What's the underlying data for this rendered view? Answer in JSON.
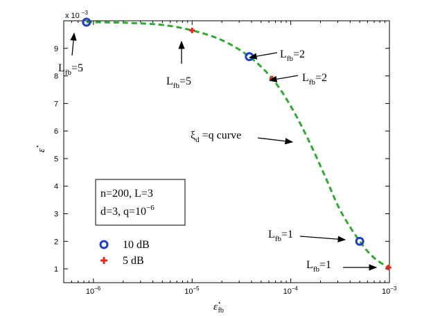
{
  "chart_data": {
    "type": "scatter",
    "xscale": "log",
    "xlim": [
      5e-07,
      0.001
    ],
    "ylim": [
      0.0005,
      0.01
    ],
    "xlabel_main": "ε",
    "xlabel_sup": "⋆",
    "xlabel_sub": "fb",
    "ylabel_main": "ε",
    "ylabel_sup": "⋆",
    "y_multiplier_base": "x 10",
    "y_multiplier_exp": "−3",
    "x_ticks": [
      1e-06,
      1e-05,
      0.0001,
      0.001
    ],
    "x_tick_labels": [
      {
        "base": "10",
        "exp": "−6"
      },
      {
        "base": "10",
        "exp": "−5"
      },
      {
        "base": "10",
        "exp": "−4"
      },
      {
        "base": "10",
        "exp": "−3"
      }
    ],
    "y_ticks": [
      0.001,
      0.002,
      0.003,
      0.004,
      0.005,
      0.006,
      0.007,
      0.008,
      0.009
    ],
    "y_tick_labels": [
      "1",
      "2",
      "3",
      "4",
      "5",
      "6",
      "7",
      "8",
      "9"
    ],
    "curve": {
      "color": "#2eaa2e",
      "style": "dashed",
      "points": [
        [
          8.5e-07,
          0.00995
        ],
        [
          2e-06,
          0.00993
        ],
        [
          5e-06,
          0.00985
        ],
        [
          1e-05,
          0.00965
        ],
        [
          2e-05,
          0.0093
        ],
        [
          3.8e-05,
          0.0087
        ],
        [
          6.5e-05,
          0.0079
        ],
        [
          0.0001,
          0.0069
        ],
        [
          0.00015,
          0.0057
        ],
        [
          0.00022,
          0.0044
        ],
        [
          0.00032,
          0.0031
        ],
        [
          0.0005,
          0.002
        ],
        [
          0.0007,
          0.0014
        ],
        [
          0.00098,
          0.00105
        ]
      ]
    },
    "series": [
      {
        "name": "10 dB",
        "marker": "circle",
        "color": "#1f3ec4",
        "x": [
          8.5e-07,
          3.8e-05,
          0.0005
        ],
        "y": [
          0.00995,
          0.0087,
          0.002
        ]
      },
      {
        "name": "5 dB",
        "marker": "plus",
        "color": "#e4261b",
        "x": [
          1e-05,
          6.5e-05,
          0.00098
        ],
        "y": [
          0.00965,
          0.0079,
          0.00105
        ]
      }
    ],
    "annotations": [
      {
        "main": "L",
        "sub": "fb",
        "tail": "=5"
      },
      {
        "main": "L",
        "sub": "fb",
        "tail": "=5"
      },
      {
        "main": "L",
        "sub": "fb",
        "tail": "=2"
      },
      {
        "main": "L",
        "sub": "fb",
        "tail": "=2"
      },
      {
        "main": "ξ",
        "sub": "d",
        "tail": " =q curve"
      },
      {
        "main": "L",
        "sub": "fb",
        "tail": "=1"
      },
      {
        "main": "L",
        "sub": "fb",
        "tail": "=1"
      }
    ],
    "info_box": {
      "line1": "n=200, L=3",
      "line2_text": "d=3, q=10",
      "line2_exp": "−6"
    },
    "legend": {
      "placement": "inside-left",
      "entries": [
        "10 dB",
        "5 dB"
      ]
    }
  }
}
